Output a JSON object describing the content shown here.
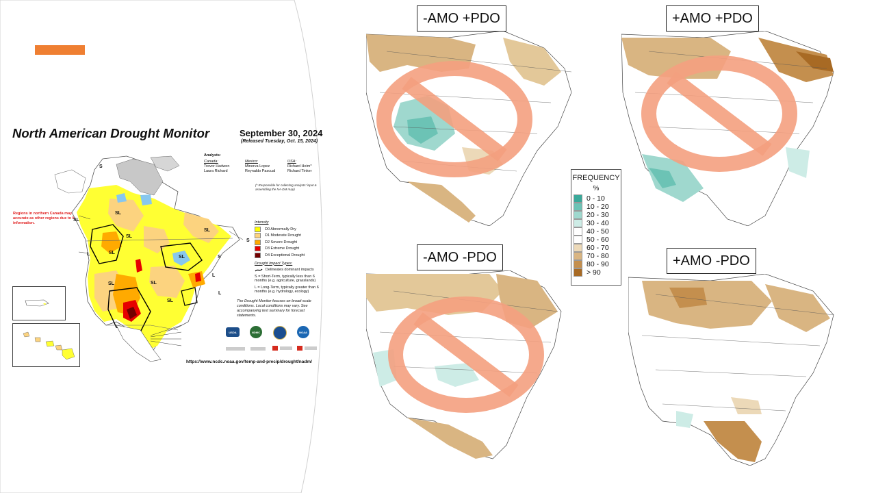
{
  "nadm": {
    "title": "North American Drought Monitor",
    "date": "September 30, 2024",
    "released": "(Released Tuesday, Oct. 15, 2024)",
    "analysts_heading": "Analysts:",
    "analysts": [
      {
        "country": "Canada:",
        "names": [
          "Trevor Hadwen",
          "Laura Richard"
        ]
      },
      {
        "country": "Mexico:",
        "names": [
          "Minerva Lopez",
          "Reynaldo Pascual"
        ]
      },
      {
        "country": "USA:",
        "names": [
          "Richard Heim*",
          "Richard Tinker"
        ]
      }
    ],
    "responsible_note": "(* Responsible for collecting analysts' input & assembling the NA-DM map)",
    "red_note": "Regions in northern Canada may not be as accurate as other regions due to limited information.",
    "intensity_heading": "Intensity",
    "intensity": [
      {
        "label": "D0 Abnormally Dry",
        "color": "#ffff00"
      },
      {
        "label": "D1 Moderate Drought",
        "color": "#fcd37f"
      },
      {
        "label": "D2 Severe Drought",
        "color": "#ffaa00"
      },
      {
        "label": "D3 Extreme Drought",
        "color": "#e60000"
      },
      {
        "label": "D4 Exceptional Drought",
        "color": "#730000"
      }
    ],
    "impact_heading": "Drought Impact Types:",
    "impact_line": "Delineates dominant impacts",
    "short_term": "S = Short-Term, typically less than 6 months (e.g. agriculture, grasslands)",
    "long_term": "L = Long-Term, typically greater than 6 months (e.g. hydrology, ecology)",
    "focus_note": "The Drought Monitor focuses on broad-scale conditions. Local conditions may vary. See accompanying text summary for forecast statements.",
    "url": "https://www.ncdc.noaa.gov/temp-and-precip/drought/nadm/",
    "map_labels": [
      "S",
      "SL",
      "SL",
      "SL",
      "SL",
      "L",
      "SL",
      "SL",
      "SL",
      "SL",
      "L",
      "S",
      "S",
      "L",
      "SL",
      "S"
    ],
    "logos": [
      "USDA",
      "NDMC",
      "NOAA"
    ]
  },
  "quadrants": [
    {
      "label": "-AMO +PDO",
      "crossed_out": true
    },
    {
      "label": "+AMO +PDO",
      "crossed_out": true
    },
    {
      "label": "-AMO -PDO",
      "crossed_out": true
    },
    {
      "label": "+AMO -PDO",
      "crossed_out": false
    }
  ],
  "frequency_legend": {
    "title": "FREQUENCY",
    "unit": "%",
    "bins": [
      {
        "label": "0 - 10",
        "color": "#3aa99a"
      },
      {
        "label": "10 - 20",
        "color": "#6cc3b5"
      },
      {
        "label": "20 - 30",
        "color": "#9fd8ce"
      },
      {
        "label": "30 - 40",
        "color": "#cdece6"
      },
      {
        "label": "40 - 50",
        "color": "#ffffff"
      },
      {
        "label": "50 - 60",
        "color": "#ffffff"
      },
      {
        "label": "60 - 70",
        "color": "#ecd9b8"
      },
      {
        "label": "70 - 80",
        "color": "#d9b582"
      },
      {
        "label": "80 - 90",
        "color": "#c48f4e"
      },
      {
        "label": "> 90",
        "color": "#a86a24"
      }
    ]
  },
  "colors": {
    "accent_bar": "#ef7f32",
    "no_sign": "#f4a07f"
  }
}
